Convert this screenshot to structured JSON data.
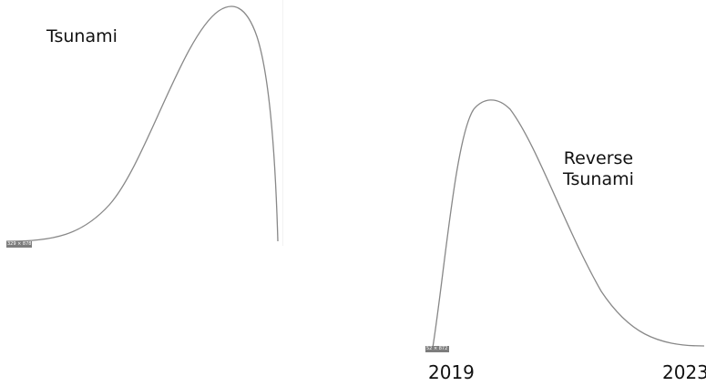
{
  "labels": {
    "tsunami": "Tsunami",
    "reverse_line1": "Reverse",
    "reverse_line2": "Tsunami",
    "year_start": "2019",
    "year_end": "2023"
  },
  "badges": {
    "left": "329 × 878",
    "right": "52 × 872"
  },
  "colors": {
    "curve": "#888888",
    "text": "#111111",
    "badge": "#7d7d7d"
  }
}
